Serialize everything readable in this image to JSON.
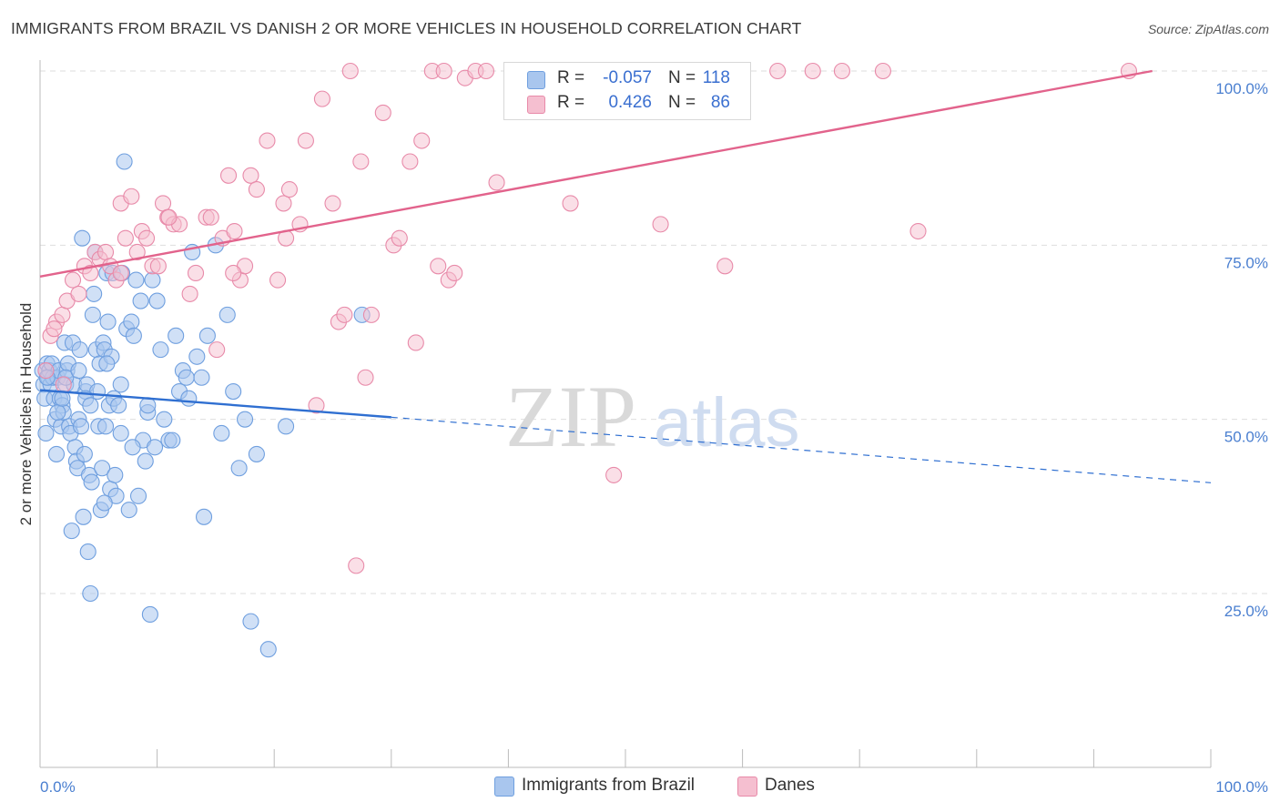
{
  "title": "IMMIGRANTS FROM BRAZIL VS DANISH 2 OR MORE VEHICLES IN HOUSEHOLD CORRELATION CHART",
  "source": "Source: ZipAtlas.com",
  "watermark": {
    "zip": "ZIP",
    "atlas": "atlas"
  },
  "legend": {
    "rows": [
      {
        "r_label": "R =",
        "r_value": "-0.057",
        "n_label": "N =",
        "n_value": "118"
      },
      {
        "r_label": "R =",
        "r_value": "0.426",
        "n_label": "N =",
        "n_value": "86"
      }
    ]
  },
  "bottom_legend": {
    "series1": "Immigrants from Brazil",
    "series2": "Danes"
  },
  "colors": {
    "blue_fill": "#a9c6ee",
    "blue_stroke": "#6f9fdf",
    "blue_line": "#2f6fd1",
    "pink_fill": "#f5bfd0",
    "pink_stroke": "#e88aa9",
    "pink_line": "#e2638c",
    "grid": "#dedede",
    "tick_label": "#4a7fd0"
  },
  "chart_data": {
    "type": "scatter",
    "title": "IMMIGRANTS FROM BRAZIL VS DANISH 2 OR MORE VEHICLES IN HOUSEHOLD CORRELATION CHART",
    "xlabel": "",
    "ylabel": "2 or more Vehicles in Household",
    "xlim": [
      0,
      100
    ],
    "ylim": [
      0,
      102
    ],
    "x_tick_labels": [
      "0.0%",
      "100.0%"
    ],
    "y_ticks": [
      {
        "value": 25,
        "label": "25.0%"
      },
      {
        "value": 50,
        "label": "50.0%"
      },
      {
        "value": 75,
        "label": "75.0%"
      },
      {
        "value": 100,
        "label": "100.0%"
      }
    ],
    "series": [
      {
        "name": "Immigrants from Brazil",
        "color": "#6f9fdf",
        "R": -0.057,
        "N": 118,
        "trend": {
          "x0": 0,
          "y0": 54.2,
          "x1": 30,
          "y1": 50.3,
          "dash_x1": 100,
          "dash_y1": 40.9
        },
        "points": [
          [
            0.2,
            57
          ],
          [
            0.3,
            55
          ],
          [
            0.4,
            53
          ],
          [
            0.5,
            48
          ],
          [
            0.6,
            58
          ],
          [
            0.7,
            56
          ],
          [
            0.8,
            57
          ],
          [
            0.9,
            55
          ],
          [
            1.0,
            58
          ],
          [
            1.1,
            56
          ],
          [
            1.2,
            53
          ],
          [
            1.3,
            50
          ],
          [
            1.4,
            45
          ],
          [
            1.5,
            56
          ],
          [
            1.6,
            57
          ],
          [
            1.7,
            53
          ],
          [
            1.8,
            49
          ],
          [
            1.9,
            52
          ],
          [
            2.0,
            51
          ],
          [
            2.1,
            61
          ],
          [
            2.2,
            55
          ],
          [
            2.3,
            57
          ],
          [
            2.4,
            58
          ],
          [
            2.5,
            49
          ],
          [
            2.6,
            48
          ],
          [
            2.7,
            34
          ],
          [
            2.8,
            61
          ],
          [
            2.9,
            55
          ],
          [
            3.0,
            46
          ],
          [
            3.1,
            44
          ],
          [
            3.2,
            43
          ],
          [
            3.3,
            50
          ],
          [
            3.4,
            60
          ],
          [
            3.5,
            49
          ],
          [
            3.6,
            76
          ],
          [
            3.7,
            36
          ],
          [
            3.8,
            45
          ],
          [
            3.9,
            54
          ],
          [
            4.0,
            55
          ],
          [
            4.1,
            31
          ],
          [
            4.2,
            42
          ],
          [
            4.3,
            25
          ],
          [
            4.4,
            41
          ],
          [
            4.5,
            65
          ],
          [
            4.6,
            68
          ],
          [
            4.7,
            74
          ],
          [
            4.8,
            60
          ],
          [
            4.9,
            54
          ],
          [
            5.0,
            49
          ],
          [
            5.1,
            58
          ],
          [
            5.2,
            37
          ],
          [
            5.3,
            43
          ],
          [
            5.4,
            61
          ],
          [
            5.5,
            60
          ],
          [
            5.6,
            49
          ],
          [
            5.7,
            71
          ],
          [
            5.8,
            64
          ],
          [
            5.9,
            52
          ],
          [
            6.0,
            40
          ],
          [
            6.1,
            59
          ],
          [
            6.2,
            71
          ],
          [
            6.3,
            53
          ],
          [
            6.4,
            42
          ],
          [
            6.5,
            39
          ],
          [
            6.7,
            52
          ],
          [
            6.9,
            48
          ],
          [
            7.0,
            71
          ],
          [
            7.2,
            87
          ],
          [
            7.4,
            63
          ],
          [
            7.6,
            37
          ],
          [
            7.8,
            64
          ],
          [
            8.0,
            62
          ],
          [
            8.2,
            70
          ],
          [
            8.4,
            39
          ],
          [
            8.6,
            67
          ],
          [
            8.8,
            47
          ],
          [
            9.0,
            44
          ],
          [
            9.2,
            51
          ],
          [
            9.4,
            22
          ],
          [
            9.6,
            70
          ],
          [
            9.8,
            46
          ],
          [
            10.0,
            67
          ],
          [
            10.3,
            60
          ],
          [
            10.6,
            50
          ],
          [
            11.0,
            47
          ],
          [
            11.3,
            47
          ],
          [
            11.6,
            62
          ],
          [
            11.9,
            54
          ],
          [
            12.2,
            57
          ],
          [
            12.5,
            56
          ],
          [
            13.0,
            74
          ],
          [
            13.4,
            59
          ],
          [
            13.8,
            56
          ],
          [
            14.0,
            36
          ],
          [
            14.3,
            62
          ],
          [
            15.0,
            75
          ],
          [
            15.5,
            48
          ],
          [
            16.0,
            65
          ],
          [
            16.5,
            54
          ],
          [
            17.0,
            43
          ],
          [
            17.5,
            50
          ],
          [
            18.0,
            21
          ],
          [
            18.5,
            45
          ],
          [
            19.5,
            17
          ],
          [
            21.0,
            49
          ],
          [
            27.5,
            65
          ],
          [
            0.6,
            56
          ],
          [
            1.5,
            51
          ],
          [
            2.2,
            56
          ],
          [
            3.3,
            57
          ],
          [
            5.5,
            38
          ],
          [
            7.9,
            46
          ],
          [
            9.2,
            52
          ],
          [
            12.7,
            53
          ],
          [
            3.9,
            53
          ],
          [
            4.3,
            52
          ],
          [
            5.7,
            58
          ],
          [
            6.9,
            55
          ],
          [
            1.9,
            53
          ]
        ]
      },
      {
        "name": "Danes",
        "color": "#e88aa9",
        "R": 0.426,
        "N": 86,
        "trend": {
          "x0": 0,
          "y0": 70.5,
          "x1": 95,
          "y1": 100
        },
        "points": [
          [
            0.5,
            57
          ],
          [
            0.9,
            62
          ],
          [
            1.4,
            64
          ],
          [
            1.9,
            65
          ],
          [
            2.3,
            67
          ],
          [
            2.8,
            70
          ],
          [
            3.3,
            68
          ],
          [
            3.8,
            72
          ],
          [
            4.3,
            71
          ],
          [
            4.7,
            74
          ],
          [
            5.1,
            73
          ],
          [
            5.6,
            74
          ],
          [
            6.0,
            72
          ],
          [
            6.5,
            70
          ],
          [
            6.9,
            81
          ],
          [
            7.3,
            76
          ],
          [
            7.8,
            82
          ],
          [
            8.3,
            74
          ],
          [
            8.7,
            77
          ],
          [
            9.1,
            76
          ],
          [
            9.6,
            72
          ],
          [
            10.1,
            72
          ],
          [
            10.5,
            81
          ],
          [
            10.9,
            79
          ],
          [
            11.4,
            78
          ],
          [
            11.9,
            78
          ],
          [
            12.8,
            68
          ],
          [
            13.3,
            71
          ],
          [
            14.2,
            79
          ],
          [
            14.6,
            79
          ],
          [
            15.1,
            60
          ],
          [
            15.6,
            76
          ],
          [
            16.1,
            85
          ],
          [
            16.6,
            77
          ],
          [
            17.1,
            70
          ],
          [
            17.5,
            72
          ],
          [
            18.0,
            85
          ],
          [
            18.5,
            83
          ],
          [
            19.4,
            90
          ],
          [
            20.3,
            70
          ],
          [
            20.8,
            81
          ],
          [
            21.3,
            83
          ],
          [
            22.2,
            78
          ],
          [
            22.7,
            90
          ],
          [
            23.6,
            52
          ],
          [
            24.1,
            96
          ],
          [
            25.0,
            81
          ],
          [
            25.5,
            64
          ],
          [
            26.0,
            65
          ],
          [
            26.5,
            100
          ],
          [
            27.4,
            87
          ],
          [
            27.8,
            56
          ],
          [
            28.3,
            65
          ],
          [
            29.3,
            94
          ],
          [
            30.2,
            75
          ],
          [
            30.7,
            76
          ],
          [
            31.6,
            87
          ],
          [
            32.1,
            61
          ],
          [
            32.6,
            90
          ],
          [
            33.5,
            100
          ],
          [
            34.0,
            72
          ],
          [
            34.9,
            70
          ],
          [
            35.4,
            71
          ],
          [
            36.3,
            99
          ],
          [
            37.2,
            100
          ],
          [
            38.1,
            100
          ],
          [
            39.0,
            84
          ],
          [
            41.0,
            100
          ],
          [
            45.3,
            81
          ],
          [
            49.0,
            42
          ],
          [
            53.0,
            78
          ],
          [
            58.5,
            72
          ],
          [
            63.0,
            100
          ],
          [
            66.0,
            100
          ],
          [
            68.5,
            100
          ],
          [
            72.0,
            100
          ],
          [
            75.0,
            77
          ],
          [
            93.0,
            100
          ],
          [
            27.0,
            29
          ],
          [
            21.0,
            76
          ],
          [
            34.5,
            100
          ],
          [
            16.5,
            71
          ],
          [
            11.0,
            79
          ],
          [
            6.9,
            71
          ],
          [
            1.2,
            63
          ],
          [
            2.0,
            55
          ]
        ]
      }
    ]
  }
}
